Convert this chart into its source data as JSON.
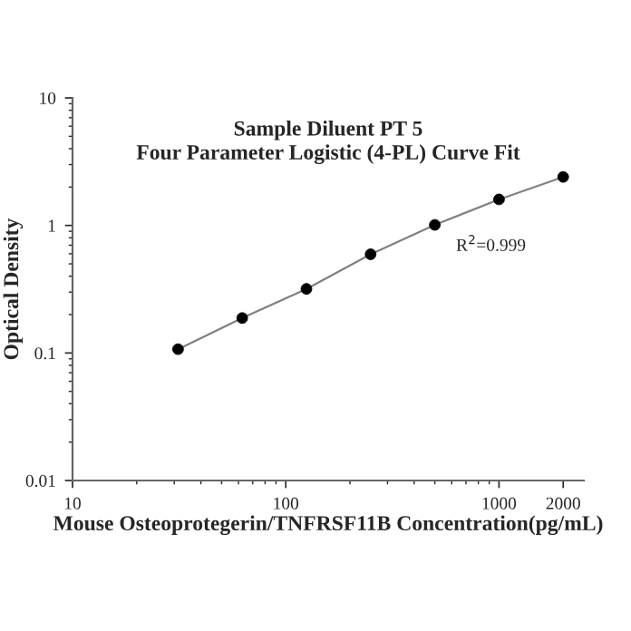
{
  "chart_data": {
    "type": "scatter",
    "title": "Sample Diluent PT 5\nFour Parameter Logistic (4-PL) Curve Fit",
    "xlabel": "Mouse Osteoprotegerin/TNFRSF11B Concentration(pg/mL)",
    "ylabel": "Optical Density",
    "log": "xy",
    "xlim": [
      10,
      2500
    ],
    "ylim": [
      0.01,
      10
    ],
    "xticks": [
      10,
      100,
      1000,
      2000
    ],
    "yticks": [
      0.01,
      0.1,
      1,
      10
    ],
    "annotations": [
      "R$^{2}$=0.999"
    ],
    "series": [
      {
        "type": "line",
        "color": "#808080",
        "x": [
          31.25,
          62.5,
          125,
          250,
          500,
          1000,
          2000
        ],
        "values": [
          0.107,
          0.188,
          0.318,
          0.594,
          1.01,
          1.6,
          2.4
        ]
      },
      {
        "color": "#000000",
        "marker": "circle",
        "x": [
          31.25,
          62.5,
          125,
          250,
          500,
          1000,
          2000
        ],
        "values": [
          0.107,
          0.188,
          0.318,
          0.594,
          1.01,
          1.6,
          2.4
        ]
      }
    ]
  }
}
